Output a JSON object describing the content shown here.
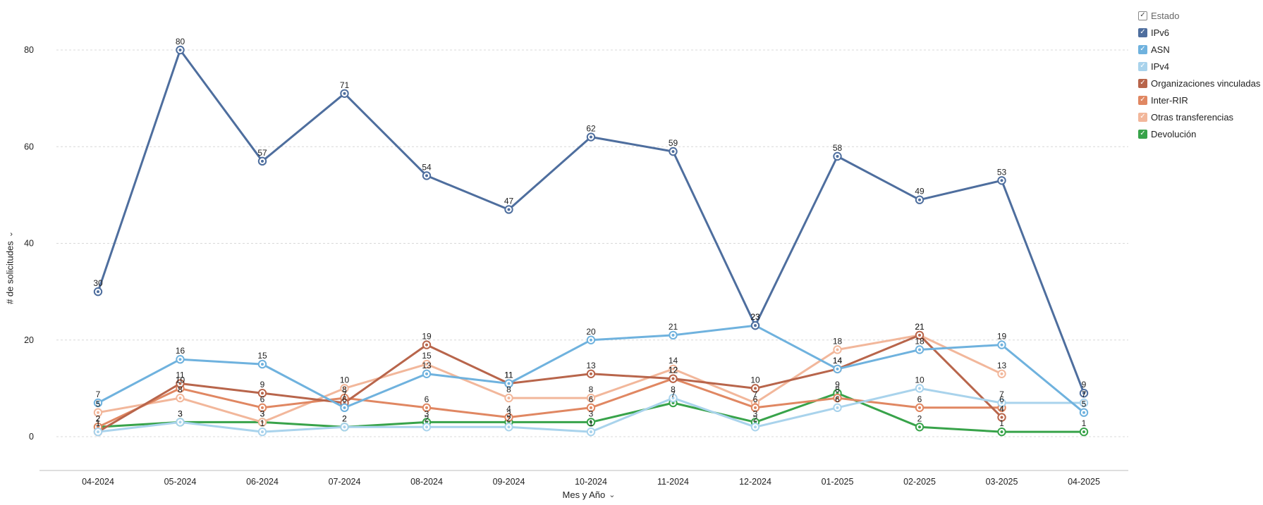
{
  "chart_data": {
    "type": "line",
    "xlabel": "Mes y Año",
    "ylabel": "# de solicitudes",
    "ylim": [
      -7,
      87
    ],
    "yticks": [
      0,
      20,
      40,
      60,
      80
    ],
    "grid": true,
    "legend_position": "top-right",
    "categories": [
      "04-2024",
      "05-2024",
      "06-2024",
      "07-2024",
      "08-2024",
      "09-2024",
      "10-2024",
      "11-2024",
      "12-2024",
      "01-2025",
      "02-2025",
      "03-2025",
      "04-2025"
    ],
    "series": [
      {
        "name": "IPv6",
        "color": "#4e6e9e",
        "values": [
          30,
          80,
          57,
          71,
          54,
          47,
          62,
          59,
          23,
          58,
          49,
          53,
          9
        ]
      },
      {
        "name": "ASN",
        "color": "#6fb2de",
        "values": [
          7,
          16,
          15,
          6,
          13,
          11,
          20,
          21,
          23,
          14,
          18,
          19,
          5
        ]
      },
      {
        "name": "IPv4",
        "color": "#a9d3ec",
        "values": [
          1,
          3,
          1,
          2,
          2,
          2,
          1,
          8,
          2,
          6,
          10,
          7,
          7
        ]
      },
      {
        "name": "Organizaciones vinculadas",
        "color": "#b8654b",
        "values": [
          1,
          11,
          9,
          7,
          19,
          11,
          13,
          12,
          10,
          14,
          21,
          4,
          null
        ]
      },
      {
        "name": "Inter-RIR",
        "color": "#e08762",
        "values": [
          2,
          10,
          6,
          8,
          6,
          4,
          6,
          12,
          6,
          8,
          6,
          6,
          null
        ]
      },
      {
        "name": "Otras transferencias",
        "color": "#f2b79b",
        "values": [
          5,
          8,
          3,
          10,
          15,
          8,
          8,
          14,
          7,
          18,
          21,
          13,
          null
        ]
      },
      {
        "name": "Devolución",
        "color": "#38a34a",
        "values": [
          2,
          3,
          3,
          2,
          3,
          3,
          3,
          7,
          3,
          9,
          2,
          1,
          1
        ]
      }
    ]
  },
  "legend": {
    "header": "Estado",
    "items": [
      {
        "label": "IPv6",
        "color": "#4e6e9e"
      },
      {
        "label": "ASN",
        "color": "#6fb2de"
      },
      {
        "label": "IPv4",
        "color": "#a9d3ec"
      },
      {
        "label": "Organizaciones vinculadas",
        "color": "#b8654b"
      },
      {
        "label": "Inter-RIR",
        "color": "#e08762"
      },
      {
        "label": "Otras transferencias",
        "color": "#f2b79b"
      },
      {
        "label": "Devolución",
        "color": "#38a34a"
      }
    ]
  },
  "icons": {
    "check": "check-icon",
    "chevron": "chevron-down-icon"
  }
}
